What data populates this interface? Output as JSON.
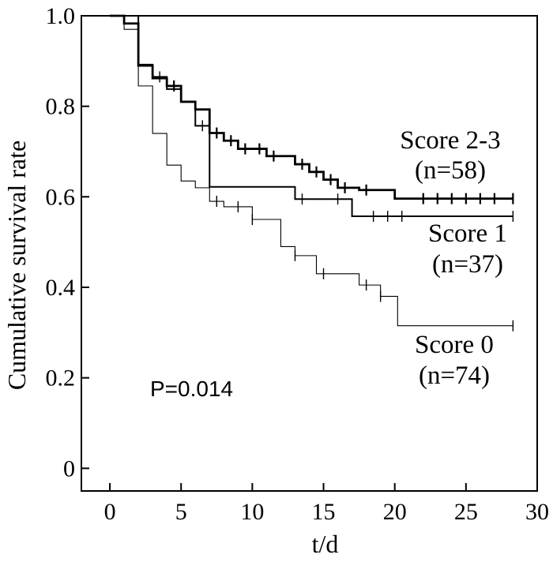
{
  "chart_data": {
    "type": "line",
    "title": "",
    "xlabel": "t/d",
    "ylabel": "Cumulative survival rate",
    "xlim": [
      -2,
      30
    ],
    "ylim": [
      -0.05,
      1.0
    ],
    "xticks": [
      "0",
      "5",
      "10",
      "15",
      "20",
      "25",
      "30"
    ],
    "yticks": [
      "0",
      "0.2",
      "0.4",
      "0.6",
      "0.8",
      "1.0"
    ],
    "grid": false,
    "legend": "none",
    "annotation": "P=0.014",
    "series": [
      {
        "name": "Score 2-3",
        "label_line1": "Score 2-3",
        "label_line2": "(n=58)",
        "style": "thick",
        "steps": [
          [
            0,
            1.0
          ],
          [
            1.0,
            0.983
          ],
          [
            2.0,
            0.89
          ],
          [
            3.0,
            0.862
          ],
          [
            4.0,
            0.845
          ],
          [
            5.0,
            0.81
          ],
          [
            6.0,
            0.793
          ],
          [
            7.0,
            0.741
          ],
          [
            8.0,
            0.724
          ],
          [
            9.0,
            0.706
          ],
          [
            11.0,
            0.69
          ],
          [
            13.0,
            0.672
          ],
          [
            14.0,
            0.655
          ],
          [
            15.0,
            0.638
          ],
          [
            16.0,
            0.62
          ],
          [
            17.5,
            0.615
          ],
          [
            20.0,
            0.596
          ],
          [
            28.3,
            0.596
          ]
        ],
        "censors": [
          [
            4.5,
            0.845
          ],
          [
            7.5,
            0.741
          ],
          [
            8.5,
            0.724
          ],
          [
            9.5,
            0.706
          ],
          [
            10.5,
            0.706
          ],
          [
            11.5,
            0.69
          ],
          [
            13.5,
            0.672
          ],
          [
            14.5,
            0.655
          ],
          [
            15.5,
            0.638
          ],
          [
            16.5,
            0.62
          ],
          [
            18.0,
            0.615
          ],
          [
            22.0,
            0.596
          ],
          [
            23.0,
            0.596
          ],
          [
            24.0,
            0.596
          ],
          [
            25.0,
            0.596
          ],
          [
            26.0,
            0.596
          ],
          [
            27.0,
            0.596
          ],
          [
            28.3,
            0.596
          ]
        ]
      },
      {
        "name": "Score 1",
        "label_line1": "Score 1",
        "label_line2": "(n=37)",
        "style": "medium",
        "steps": [
          [
            0,
            1.0
          ],
          [
            2.0,
            0.892
          ],
          [
            3.0,
            0.865
          ],
          [
            4.0,
            0.838
          ],
          [
            5.0,
            0.81
          ],
          [
            6.0,
            0.757
          ],
          [
            7.0,
            0.622
          ],
          [
            13.0,
            0.595
          ],
          [
            17.0,
            0.557
          ],
          [
            28.3,
            0.557
          ]
        ],
        "censors": [
          [
            3.5,
            0.865
          ],
          [
            6.5,
            0.757
          ],
          [
            13.5,
            0.595
          ],
          [
            16.0,
            0.595
          ],
          [
            18.5,
            0.557
          ],
          [
            19.5,
            0.557
          ],
          [
            20.5,
            0.557
          ],
          [
            28.3,
            0.557
          ]
        ]
      },
      {
        "name": "Score 0",
        "label_line1": "Score 0",
        "label_line2": "(n=74)",
        "style": "thin",
        "steps": [
          [
            0,
            1.0
          ],
          [
            1.0,
            0.97
          ],
          [
            2.0,
            0.845
          ],
          [
            3.0,
            0.74
          ],
          [
            4.0,
            0.67
          ],
          [
            5.0,
            0.635
          ],
          [
            6.0,
            0.62
          ],
          [
            7.0,
            0.59
          ],
          [
            8.0,
            0.578
          ],
          [
            10.0,
            0.55
          ],
          [
            12.0,
            0.49
          ],
          [
            13.0,
            0.47
          ],
          [
            14.5,
            0.43
          ],
          [
            17.5,
            0.405
          ],
          [
            19.0,
            0.38
          ],
          [
            20.2,
            0.315
          ],
          [
            28.3,
            0.315
          ]
        ],
        "censors": [
          [
            7.5,
            0.59
          ],
          [
            9.0,
            0.578
          ],
          [
            10.0,
            0.55
          ],
          [
            13.0,
            0.47
          ],
          [
            15.0,
            0.43
          ],
          [
            18.0,
            0.405
          ],
          [
            19.0,
            0.38
          ],
          [
            28.3,
            0.315
          ]
        ]
      }
    ]
  }
}
